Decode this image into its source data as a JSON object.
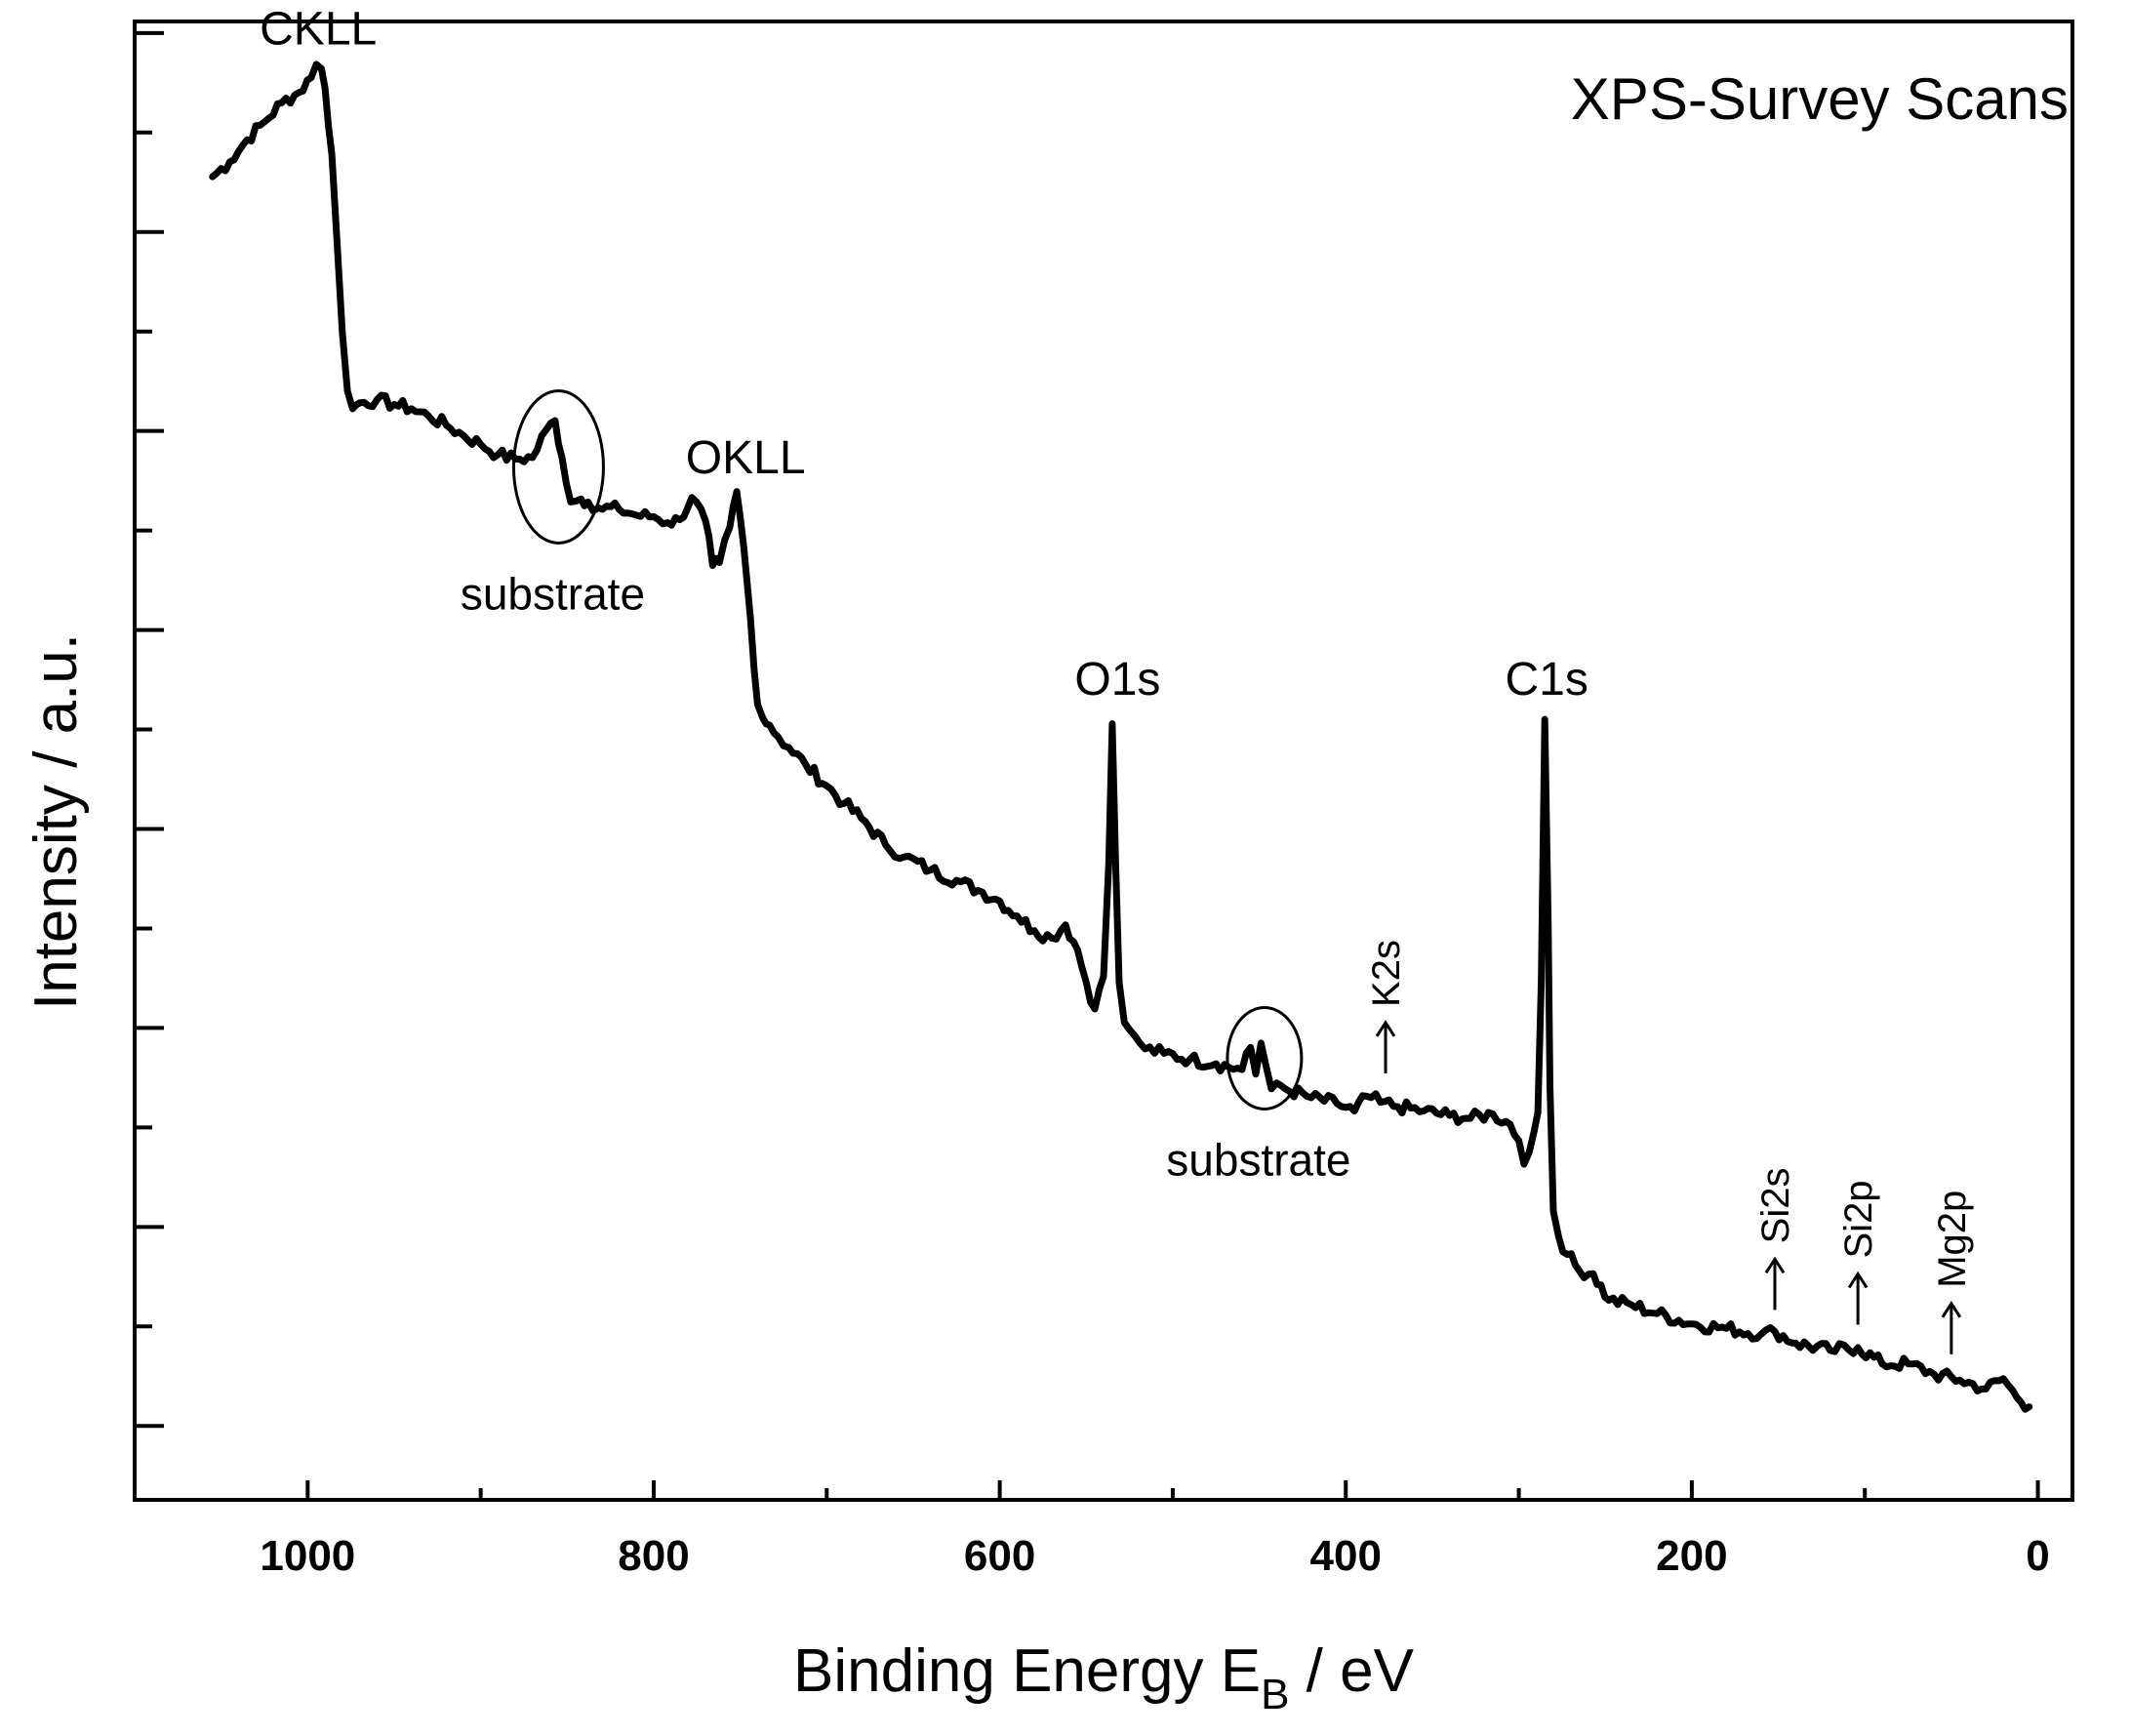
{
  "chart_data": {
    "type": "line",
    "title": "XPS-Survey Scans",
    "xlabel": "Binding Energy E",
    "xlabel_subscript": "B",
    "xlabel_suffix": " / eV",
    "ylabel": "Intensity / a.u.",
    "xlim": [
      1100,
      -20
    ],
    "xlim_note": "axis reversed: high binding energy on the left",
    "ylim": [
      0,
      100
    ],
    "y_tick_labels_shown": false,
    "x_ticks": [
      1000,
      800,
      600,
      400,
      200,
      0
    ],
    "x_tick_labels": [
      "1000",
      "800",
      "600",
      "400",
      "200",
      "0"
    ],
    "series": [
      {
        "name": "XPS survey spectrum",
        "color": "#000000",
        "x": [
          1055,
          1045,
          1035,
          1025,
          1015,
          1005,
          998,
          995,
          992,
          990,
          986,
          983,
          980,
          977,
          974,
          970,
          960,
          950,
          940,
          930,
          920,
          910,
          900,
          890,
          880,
          870,
          862,
          857,
          853,
          848,
          842,
          838,
          832,
          820,
          810,
          800,
          792,
          785,
          778,
          770,
          766,
          762,
          756,
          752,
          748,
          744,
          740,
          737,
          733,
          728,
          722,
          712,
          700,
          690,
          680,
          666,
          655,
          640,
          625,
          610,
          600,
          590,
          580,
          570,
          562,
          555,
          550,
          545,
          540,
          537,
          535,
          533,
          531,
          528,
          525,
          522,
          516,
          505,
          490,
          475,
          460,
          455,
          452,
          449,
          446,
          443,
          440,
          435,
          420,
          405,
          395,
          388,
          380,
          370,
          355,
          340,
          328,
          315,
          305,
          300,
          297,
          294,
          291,
          289,
          287,
          285,
          283,
          282,
          280,
          277,
          272,
          265,
          257,
          248,
          235,
          220,
          200,
          180,
          160,
          152,
          140,
          120,
          104,
          90,
          75,
          60,
          45,
          30,
          20,
          12,
          5
        ],
        "y": [
          89.5,
          90.5,
          92,
          93.2,
          94.5,
          95.2,
          96.2,
          97.1,
          96.8,
          95.5,
          91,
          85,
          79,
          75,
          73.8,
          74.2,
          74.4,
          74.1,
          73.8,
          73.3,
          72.7,
          72.0,
          71.4,
          70.7,
          70.4,
          70.5,
          72.4,
          73.0,
          70.5,
          67.5,
          67.7,
          67.5,
          67.1,
          67.0,
          66.6,
          66.5,
          66.1,
          66.3,
          67.8,
          66.2,
          63.2,
          63.4,
          65.8,
          68.2,
          64.5,
          59.5,
          53.8,
          52.9,
          52.4,
          51.6,
          50.9,
          49.7,
          48.3,
          47.1,
          46.1,
          44.3,
          43.5,
          42.6,
          41.9,
          41.1,
          40.5,
          39.5,
          38.5,
          38.0,
          38.9,
          37.2,
          35.0,
          33.2,
          35.4,
          43.0,
          52.5,
          43.0,
          35.0,
          32.3,
          31.8,
          31.4,
          30.5,
          30.2,
          29.8,
          29.5,
          29.1,
          30.6,
          28.8,
          30.9,
          29.3,
          27.8,
          28.2,
          27.8,
          27.2,
          26.8,
          26.3,
          27.3,
          26.9,
          26.6,
          26.3,
          26.0,
          25.8,
          26.1,
          25.4,
          24.3,
          22.7,
          23.5,
          25.0,
          26.2,
          35.0,
          52.8,
          39.0,
          28.0,
          19.5,
          17.8,
          16.6,
          15.5,
          15.3,
          13.5,
          13.2,
          12.6,
          11.9,
          11.6,
          11.2,
          11.4,
          10.6,
          10.1,
          10.3,
          9.2,
          9.2,
          8.5,
          8.1,
          7.5,
          8.2,
          6.9,
          6.3
        ]
      }
    ],
    "annotations": [
      {
        "text": "CKLL",
        "x": 995,
        "y": 97,
        "kind": "peak"
      },
      {
        "text": "substrate",
        "x": 855,
        "y": 70,
        "kind": "circled-region"
      },
      {
        "text": "OKLL",
        "x": 748,
        "y": 68,
        "kind": "peak"
      },
      {
        "text": "O1s",
        "x": 533,
        "y": 53,
        "kind": "peak"
      },
      {
        "text": "substrate",
        "x": 447,
        "y": 30,
        "kind": "circled-region"
      },
      {
        "text": "K2s",
        "x": 377,
        "y": 27,
        "kind": "arrow"
      },
      {
        "text": "C1s",
        "x": 285,
        "y": 53,
        "kind": "peak"
      },
      {
        "text": "Si2s",
        "x": 152,
        "y": 11,
        "kind": "arrow"
      },
      {
        "text": "Si2p",
        "x": 104,
        "y": 10,
        "kind": "arrow"
      },
      {
        "text": "Mg2p",
        "x": 50,
        "y": 8,
        "kind": "arrow"
      }
    ]
  }
}
